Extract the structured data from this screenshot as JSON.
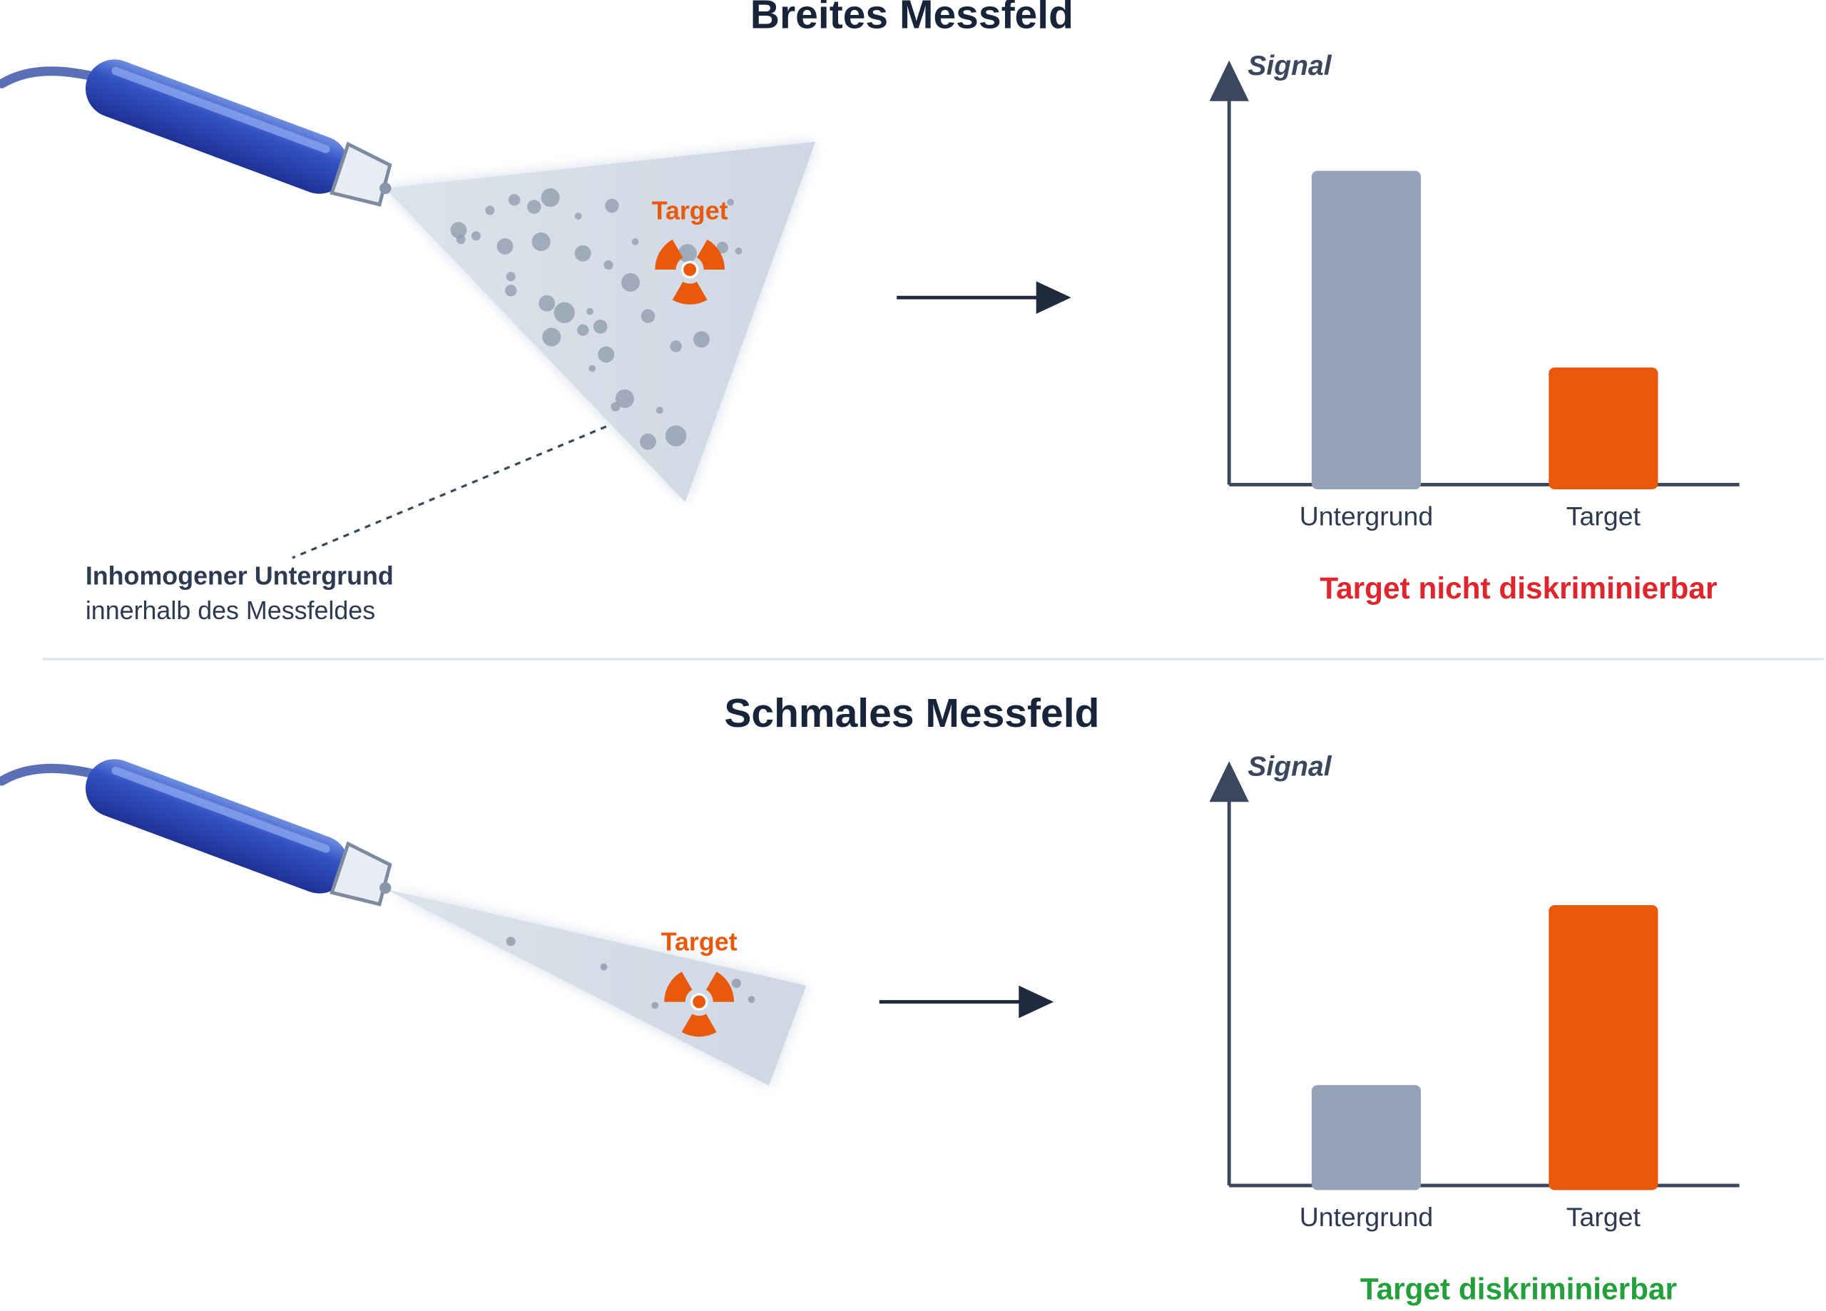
{
  "diagram": {
    "panels": [
      {
        "title": "Breites Messfeld",
        "target_label": "Target",
        "note_bold": "Inhomogener Untergrund",
        "note": "innerhalb des Messfeldes"
      },
      {
        "title": "Schmales Messfeld",
        "target_label": "Target"
      }
    ]
  },
  "chart_data": [
    {
      "type": "bar",
      "ylabel": "Signal",
      "categories": [
        "Untergrund",
        "Target"
      ],
      "series": [
        {
          "values": [
            75,
            28
          ],
          "colors": [
            "#94a3b8",
            "#e8590c"
          ]
        }
      ],
      "ylim": [
        0,
        100
      ],
      "caption": "Target nicht diskriminierbar",
      "caption_color": "#e0262d"
    },
    {
      "type": "bar",
      "ylabel": "Signal",
      "categories": [
        "Untergrund",
        "Target"
      ],
      "series": [
        {
          "values": [
            24,
            67
          ],
          "colors": [
            "#94a3b8",
            "#e8590c"
          ]
        }
      ],
      "ylim": [
        0,
        100
      ],
      "caption": "Target diskriminierbar",
      "caption_color": "#23a03c"
    }
  ]
}
